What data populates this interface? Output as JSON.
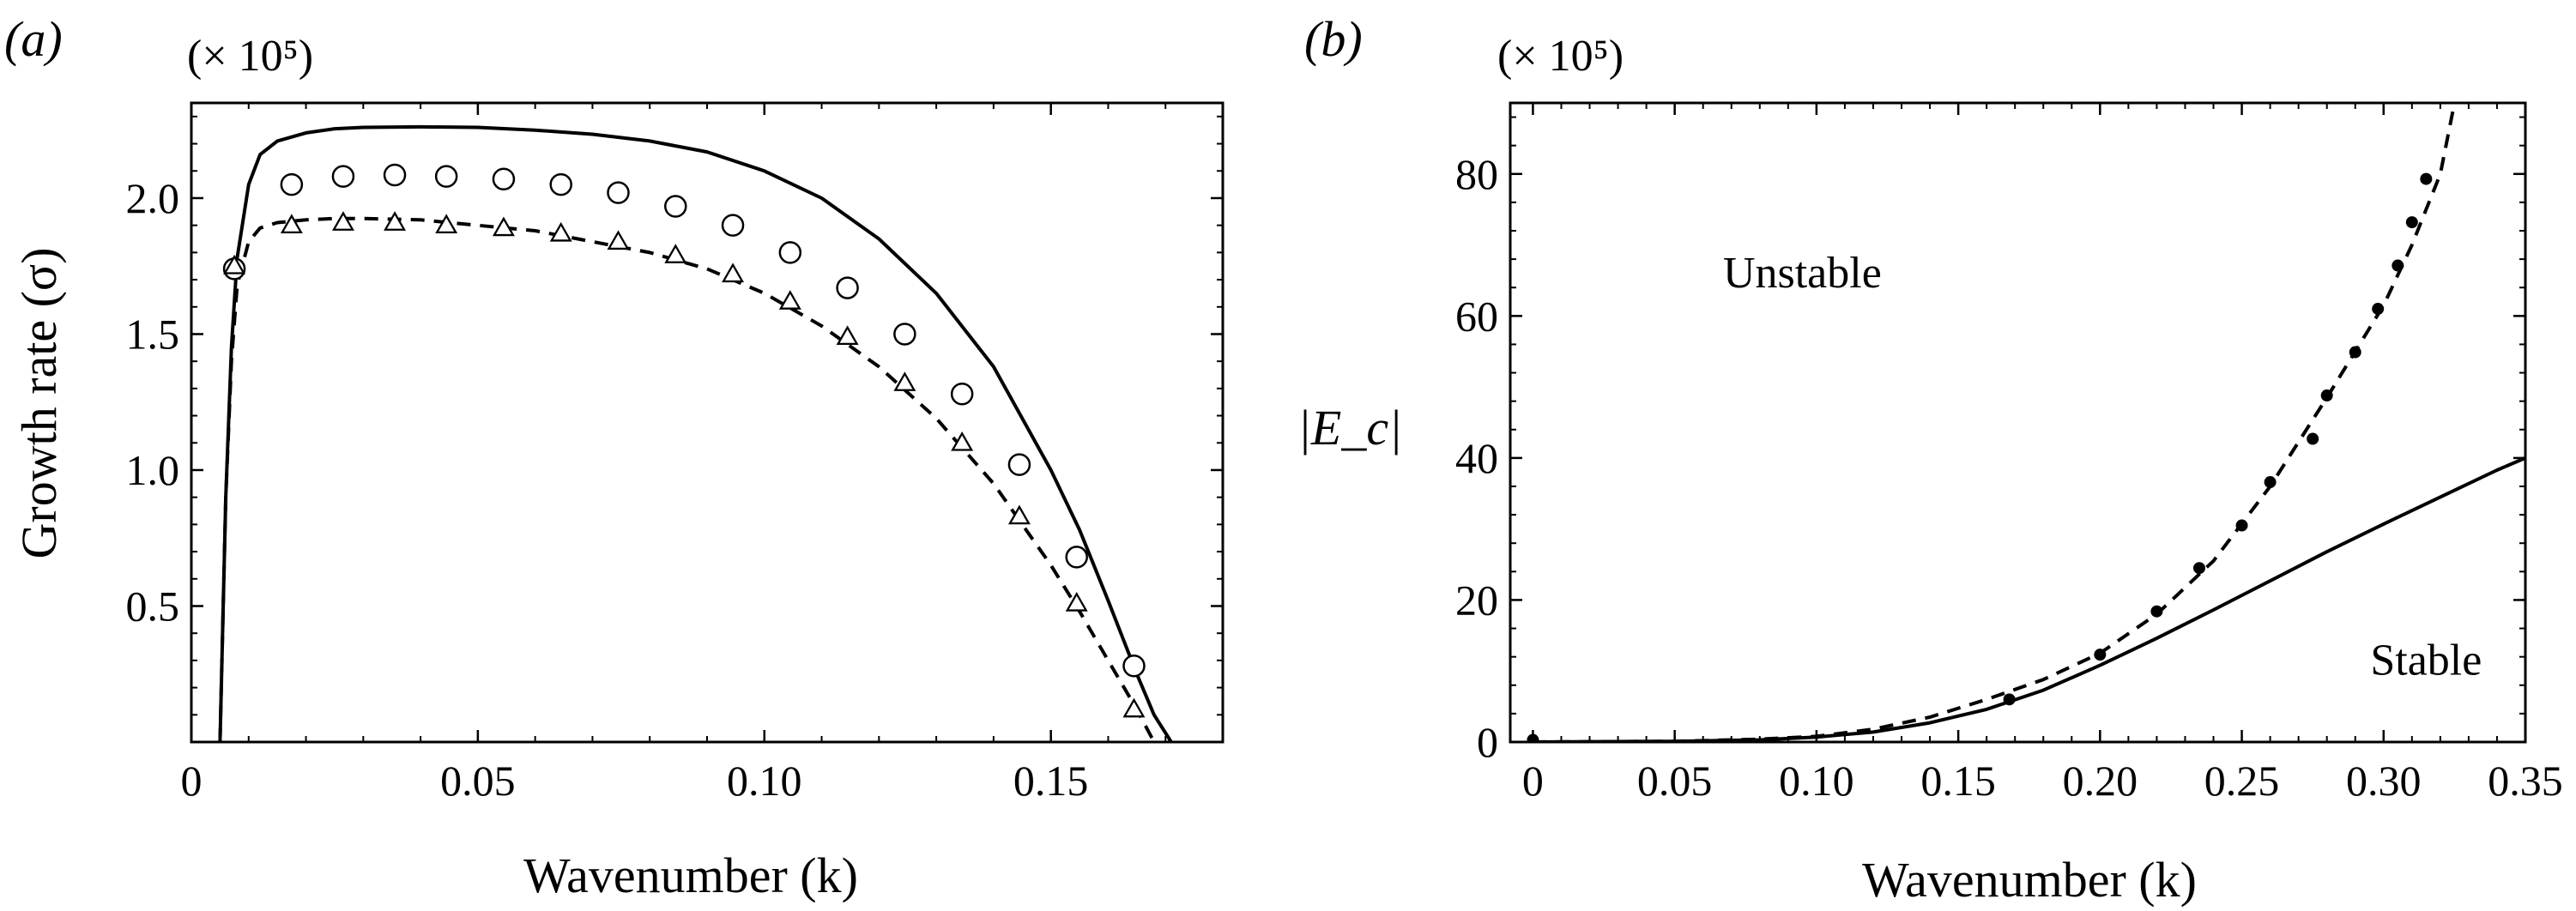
{
  "chart_data": [
    {
      "panel": "(a)",
      "type": "line",
      "scale_note": "(× 10⁵)",
      "xlabel": "Wavenumber (k)",
      "ylabel": "Growth rate (σ)",
      "xlim": [
        0,
        0.18
      ],
      "ylim": [
        0,
        2.35
      ],
      "x_ticks": [
        0,
        0.05,
        0.1,
        0.15
      ],
      "x_tick_labels": [
        "0",
        "0.05",
        "0.10",
        "0.15"
      ],
      "y_ticks": [
        0.5,
        1.0,
        1.5,
        2.0
      ],
      "y_tick_labels": [
        "0.5",
        "1.0",
        "1.5",
        "2.0"
      ],
      "series": [
        {
          "style": "solid-line",
          "x": [
            0.005,
            0.006,
            0.007,
            0.008,
            0.01,
            0.012,
            0.015,
            0.02,
            0.025,
            0.03,
            0.04,
            0.05,
            0.06,
            0.07,
            0.08,
            0.09,
            0.1,
            0.11,
            0.12,
            0.13,
            0.14,
            0.15,
            0.155,
            0.16,
            0.165,
            0.168,
            0.171
          ],
          "y": [
            0.0,
            0.9,
            1.45,
            1.78,
            2.05,
            2.16,
            2.21,
            2.24,
            2.255,
            2.26,
            2.262,
            2.26,
            2.25,
            2.235,
            2.21,
            2.17,
            2.1,
            2.0,
            1.85,
            1.65,
            1.38,
            1.0,
            0.78,
            0.52,
            0.25,
            0.1,
            0.0
          ]
        },
        {
          "style": "dashed-line",
          "x": [
            0.005,
            0.006,
            0.007,
            0.008,
            0.01,
            0.012,
            0.015,
            0.02,
            0.025,
            0.03,
            0.04,
            0.05,
            0.06,
            0.07,
            0.08,
            0.09,
            0.1,
            0.11,
            0.12,
            0.13,
            0.14,
            0.15,
            0.155,
            0.16,
            0.165,
            0.168
          ],
          "y": [
            0.0,
            0.9,
            1.4,
            1.68,
            1.84,
            1.89,
            1.91,
            1.92,
            1.925,
            1.925,
            1.92,
            1.9,
            1.88,
            1.84,
            1.8,
            1.74,
            1.65,
            1.53,
            1.38,
            1.19,
            0.95,
            0.65,
            0.48,
            0.3,
            0.12,
            0.0
          ]
        },
        {
          "style": "open-circle",
          "x": [
            0.0075,
            0.0175,
            0.0265,
            0.0355,
            0.0445,
            0.0545,
            0.0645,
            0.0745,
            0.0845,
            0.0945,
            0.1045,
            0.1145,
            0.1245,
            0.1345,
            0.1445,
            0.1545,
            0.1645
          ],
          "y": [
            1.74,
            2.05,
            2.08,
            2.085,
            2.08,
            2.07,
            2.05,
            2.02,
            1.97,
            1.9,
            1.8,
            1.67,
            1.5,
            1.28,
            1.02,
            0.68,
            0.28
          ]
        },
        {
          "style": "open-triangle",
          "x": [
            0.0075,
            0.0175,
            0.0265,
            0.0355,
            0.0445,
            0.0545,
            0.0645,
            0.0745,
            0.0845,
            0.0945,
            0.1045,
            0.1145,
            0.1245,
            0.1345,
            0.1445,
            0.1545,
            0.1645
          ],
          "y": [
            1.75,
            1.9,
            1.91,
            1.91,
            1.9,
            1.89,
            1.87,
            1.84,
            1.79,
            1.72,
            1.62,
            1.49,
            1.32,
            1.1,
            0.83,
            0.51,
            0.12
          ]
        }
      ]
    },
    {
      "panel": "(b)",
      "type": "line",
      "scale_note": "(× 10⁵)",
      "xlabel": "Wavenumber (k)",
      "ylabel": "|E_c|",
      "xlim": [
        -0.008,
        0.35
      ],
      "ylim": [
        0,
        90
      ],
      "x_ticks": [
        0,
        0.05,
        0.1,
        0.15,
        0.2,
        0.25,
        0.3,
        0.35
      ],
      "x_tick_labels": [
        "0",
        "0.05",
        "0.10",
        "0.15",
        "0.20",
        "0.25",
        "0.30",
        "0.35"
      ],
      "y_ticks": [
        0,
        20,
        40,
        60,
        80
      ],
      "y_tick_labels": [
        "0",
        "20",
        "40",
        "60",
        "80"
      ],
      "annotations": [
        {
          "text": "Unstable",
          "x": 0.095,
          "y": 64
        },
        {
          "text": "Stable",
          "x": 0.315,
          "y": 9.5
        }
      ],
      "series": [
        {
          "style": "solid-line",
          "x": [
            0,
            0.05,
            0.08,
            0.1,
            0.12,
            0.14,
            0.16,
            0.18,
            0.2,
            0.22,
            0.24,
            0.26,
            0.28,
            0.3,
            0.32,
            0.34,
            0.35
          ],
          "y": [
            0,
            0.1,
            0.3,
            0.7,
            1.4,
            2.7,
            4.6,
            7.3,
            10.8,
            14.6,
            18.6,
            22.7,
            26.8,
            30.7,
            34.5,
            38.3,
            40
          ]
        },
        {
          "style": "dashed-line",
          "x": [
            0,
            0.05,
            0.08,
            0.1,
            0.12,
            0.14,
            0.16,
            0.18,
            0.2,
            0.22,
            0.24,
            0.26,
            0.28,
            0.3,
            0.31,
            0.32,
            0.325
          ],
          "y": [
            0,
            0.1,
            0.4,
            0.8,
            1.8,
            3.5,
            6.0,
            8.8,
            12.5,
            18.0,
            25.5,
            36.0,
            48.5,
            61.5,
            70.0,
            80.0,
            90.0
          ]
        },
        {
          "style": "filled-dot",
          "x": [
            0.0,
            0.168,
            0.2,
            0.22,
            0.235,
            0.25,
            0.26,
            0.275,
            0.28,
            0.29,
            0.298,
            0.305,
            0.31,
            0.315
          ],
          "y": [
            0.3,
            6.0,
            12.3,
            18.4,
            24.5,
            30.5,
            36.6,
            42.7,
            48.8,
            54.9,
            61.0,
            67.1,
            73.2,
            79.3
          ]
        }
      ]
    }
  ]
}
